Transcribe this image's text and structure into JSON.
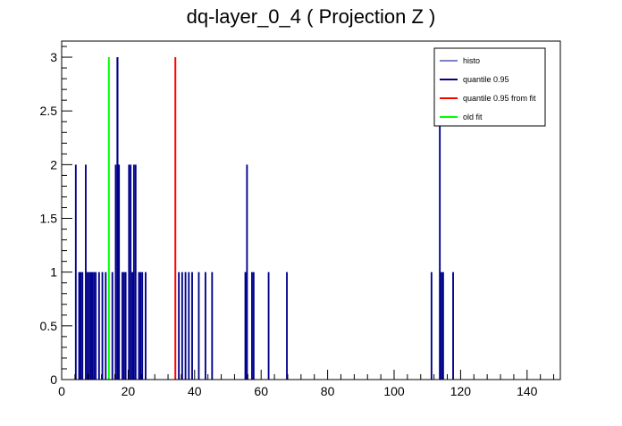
{
  "chart_data": {
    "type": "bar",
    "title": "dq-layer_0_4 ( Projection Z )",
    "xlim": [
      0,
      150
    ],
    "ylim": [
      0,
      3.15
    ],
    "x_ticks": [
      0,
      20,
      40,
      60,
      80,
      100,
      120,
      140
    ],
    "y_ticks": [
      0,
      0.5,
      1,
      1.5,
      2,
      2.5,
      3
    ],
    "bin_width": 0.5,
    "series": [
      {
        "name": "histo",
        "color": "#00008b",
        "bins": [
          {
            "x": 4.0,
            "y": 2
          },
          {
            "x": 5.0,
            "y": 1
          },
          {
            "x": 5.5,
            "y": 1
          },
          {
            "x": 6.0,
            "y": 1
          },
          {
            "x": 7.0,
            "y": 2
          },
          {
            "x": 7.5,
            "y": 1
          },
          {
            "x": 8.0,
            "y": 1
          },
          {
            "x": 8.5,
            "y": 1
          },
          {
            "x": 9.0,
            "y": 1
          },
          {
            "x": 9.5,
            "y": 1
          },
          {
            "x": 10.0,
            "y": 1
          },
          {
            "x": 11.0,
            "y": 1
          },
          {
            "x": 12.0,
            "y": 1
          },
          {
            "x": 13.0,
            "y": 1
          },
          {
            "x": 15.0,
            "y": 1
          },
          {
            "x": 16.0,
            "y": 2
          },
          {
            "x": 16.5,
            "y": 3
          },
          {
            "x": 17.0,
            "y": 2
          },
          {
            "x": 18.0,
            "y": 1
          },
          {
            "x": 18.5,
            "y": 1
          },
          {
            "x": 19.0,
            "y": 1
          },
          {
            "x": 20.0,
            "y": 2
          },
          {
            "x": 20.5,
            "y": 2
          },
          {
            "x": 21.0,
            "y": 1
          },
          {
            "x": 21.5,
            "y": 2
          },
          {
            "x": 22.0,
            "y": 2
          },
          {
            "x": 23.0,
            "y": 1
          },
          {
            "x": 23.5,
            "y": 1
          },
          {
            "x": 24.0,
            "y": 1
          },
          {
            "x": 25.0,
            "y": 1
          },
          {
            "x": 35.0,
            "y": 1
          },
          {
            "x": 36.0,
            "y": 1
          },
          {
            "x": 37.0,
            "y": 1
          },
          {
            "x": 38.0,
            "y": 1
          },
          {
            "x": 39.0,
            "y": 1
          },
          {
            "x": 41.0,
            "y": 1
          },
          {
            "x": 43.0,
            "y": 1
          },
          {
            "x": 45.0,
            "y": 1
          },
          {
            "x": 55.0,
            "y": 1
          },
          {
            "x": 55.5,
            "y": 2
          },
          {
            "x": 57.0,
            "y": 1
          },
          {
            "x": 57.5,
            "y": 1
          },
          {
            "x": 62.0,
            "y": 1
          },
          {
            "x": 67.5,
            "y": 1
          },
          {
            "x": 111.0,
            "y": 1
          },
          {
            "x": 113.5,
            "y": 3
          },
          {
            "x": 114.0,
            "y": 1
          },
          {
            "x": 114.5,
            "y": 1
          },
          {
            "x": 117.5,
            "y": 1
          }
        ]
      },
      {
        "name": "quantile 0.95",
        "color": "#00008b",
        "x": 16.8,
        "y": 3
      },
      {
        "name": "quantile 0.95 from fit",
        "color": "#ff0000",
        "x": 34.2,
        "y": 3
      },
      {
        "name": "old fit",
        "color": "#00ff00",
        "x": 14.2,
        "y": 3
      }
    ],
    "legend": {
      "position": "top-right",
      "entries": [
        {
          "label": "histo",
          "color": "#00008b"
        },
        {
          "label": "quantile 0.95",
          "color": "#00008b"
        },
        {
          "label": "quantile 0.95 from fit",
          "color": "#ff0000"
        },
        {
          "label": "old fit",
          "color": "#00ff00"
        }
      ]
    }
  }
}
